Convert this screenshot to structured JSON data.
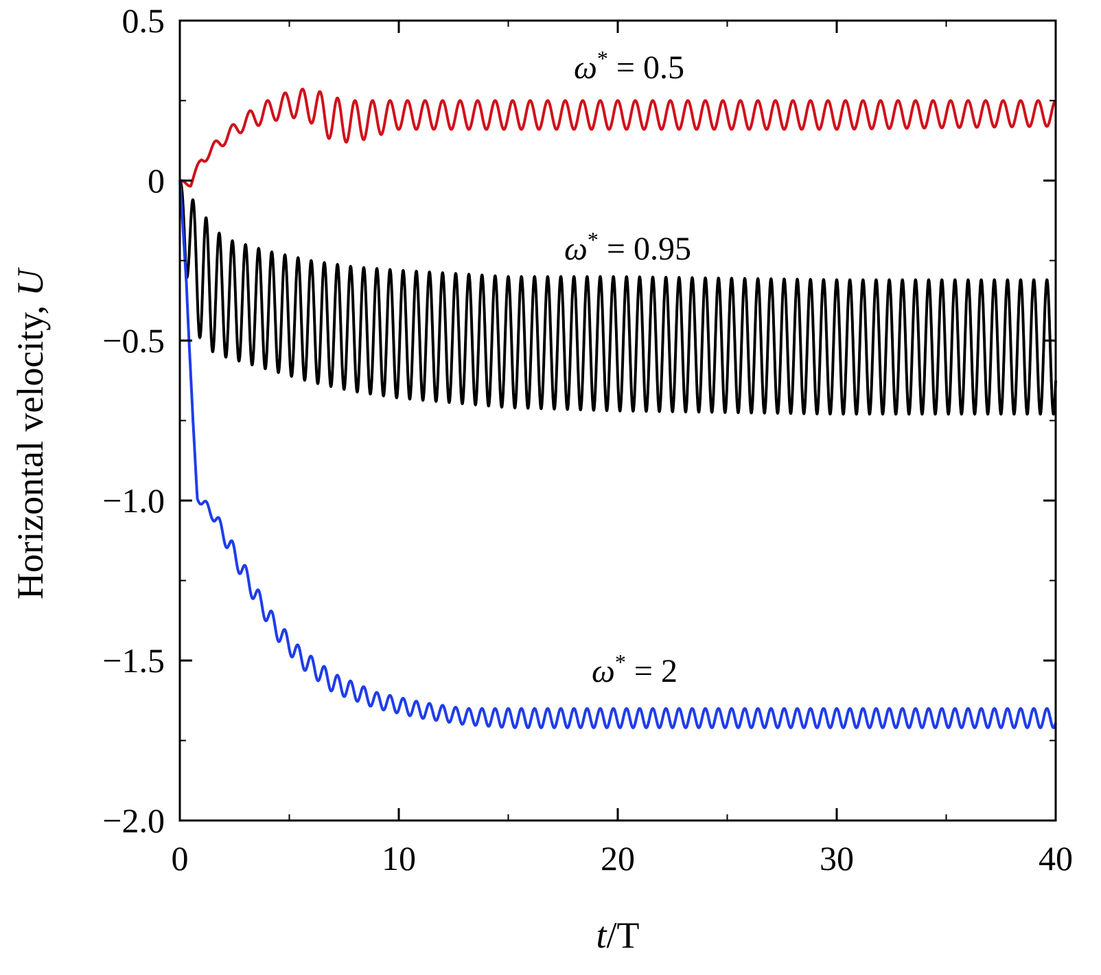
{
  "chart_data": {
    "type": "line",
    "xlabel_var": "t",
    "xlabel_rest": "/T",
    "ylabel_text": "Horizontal velocity, ",
    "ylabel_var": "U",
    "xlim": [
      0,
      40
    ],
    "ylim": [
      -2.0,
      0.5
    ],
    "x_ticks": [
      0,
      10,
      20,
      30,
      40
    ],
    "x_tick_labels": [
      "0",
      "10",
      "20",
      "30",
      "40"
    ],
    "y_ticks": [
      0.5,
      0,
      -0.5,
      -1.0,
      -1.5,
      -2.0
    ],
    "y_tick_labels": [
      "0.5",
      "0",
      "−0.5",
      "−1.0",
      "−1.5",
      "−2.0"
    ],
    "grid": false,
    "series": [
      {
        "label_symbol": "ω",
        "label_sup": "*",
        "label_text": " = 0.5",
        "color": "#d0111b",
        "period": 0.8,
        "upper": [
          [
            0,
            0.0
          ],
          [
            0.5,
            0.0
          ],
          [
            1,
            0.08
          ],
          [
            2,
            0.15
          ],
          [
            3,
            0.21
          ],
          [
            4,
            0.25
          ],
          [
            5,
            0.28
          ],
          [
            6,
            0.29
          ],
          [
            7,
            0.26
          ],
          [
            8,
            0.25
          ],
          [
            10,
            0.25
          ],
          [
            20,
            0.25
          ],
          [
            30,
            0.25
          ],
          [
            40,
            0.25
          ]
        ],
        "lower": [
          [
            0,
            0.0
          ],
          [
            0.5,
            -0.02
          ],
          [
            1,
            0.05
          ],
          [
            2,
            0.11
          ],
          [
            3,
            0.16
          ],
          [
            4,
            0.18
          ],
          [
            5,
            0.2
          ],
          [
            6,
            0.18
          ],
          [
            7,
            0.12
          ],
          [
            8,
            0.12
          ],
          [
            10,
            0.16
          ],
          [
            15,
            0.16
          ],
          [
            20,
            0.16
          ],
          [
            30,
            0.16
          ],
          [
            40,
            0.17
          ]
        ]
      },
      {
        "label_symbol": "ω",
        "label_sup": "*",
        "label_text": " = 0.95",
        "color": "#000000",
        "period": 0.6,
        "upper": [
          [
            0,
            0.0
          ],
          [
            0.5,
            -0.05
          ],
          [
            1,
            -0.1
          ],
          [
            2,
            -0.18
          ],
          [
            4,
            -0.22
          ],
          [
            6,
            -0.25
          ],
          [
            8,
            -0.27
          ],
          [
            10,
            -0.28
          ],
          [
            15,
            -0.3
          ],
          [
            20,
            -0.3
          ],
          [
            30,
            -0.31
          ],
          [
            40,
            -0.31
          ]
        ],
        "lower": [
          [
            0,
            0.0
          ],
          [
            0.3,
            -0.3
          ],
          [
            1,
            -0.52
          ],
          [
            2,
            -0.55
          ],
          [
            4,
            -0.59
          ],
          [
            6,
            -0.63
          ],
          [
            8,
            -0.66
          ],
          [
            10,
            -0.68
          ],
          [
            15,
            -0.71
          ],
          [
            20,
            -0.72
          ],
          [
            30,
            -0.73
          ],
          [
            40,
            -0.73
          ]
        ]
      },
      {
        "label_symbol": "ω",
        "label_sup": "*",
        "label_text": " = 2",
        "color": "#1f3dea",
        "period": 0.6,
        "upper": [
          [
            0,
            0.0
          ],
          [
            0.3,
            -0.3
          ],
          [
            0.6,
            -0.75
          ],
          [
            0.8,
            -0.98
          ],
          [
            1.5,
            -1.02
          ],
          [
            2.5,
            -1.14
          ],
          [
            3.5,
            -1.27
          ],
          [
            4.5,
            -1.38
          ],
          [
            5.5,
            -1.46
          ],
          [
            7,
            -1.54
          ],
          [
            9,
            -1.6
          ],
          [
            11,
            -1.63
          ],
          [
            13,
            -1.65
          ],
          [
            15,
            -1.65
          ],
          [
            20,
            -1.65
          ],
          [
            30,
            -1.65
          ],
          [
            40,
            -1.65
          ]
        ],
        "lower": [
          [
            0,
            0.0
          ],
          [
            0.3,
            -0.32
          ],
          [
            0.6,
            -0.8
          ],
          [
            0.8,
            -1.0
          ],
          [
            1.5,
            -1.06
          ],
          [
            2.5,
            -1.2
          ],
          [
            3.5,
            -1.33
          ],
          [
            4.5,
            -1.44
          ],
          [
            5.5,
            -1.52
          ],
          [
            7,
            -1.6
          ],
          [
            9,
            -1.65
          ],
          [
            11,
            -1.68
          ],
          [
            13,
            -1.7
          ],
          [
            15,
            -1.71
          ],
          [
            20,
            -1.71
          ],
          [
            30,
            -1.71
          ],
          [
            40,
            -1.71
          ]
        ]
      }
    ]
  }
}
